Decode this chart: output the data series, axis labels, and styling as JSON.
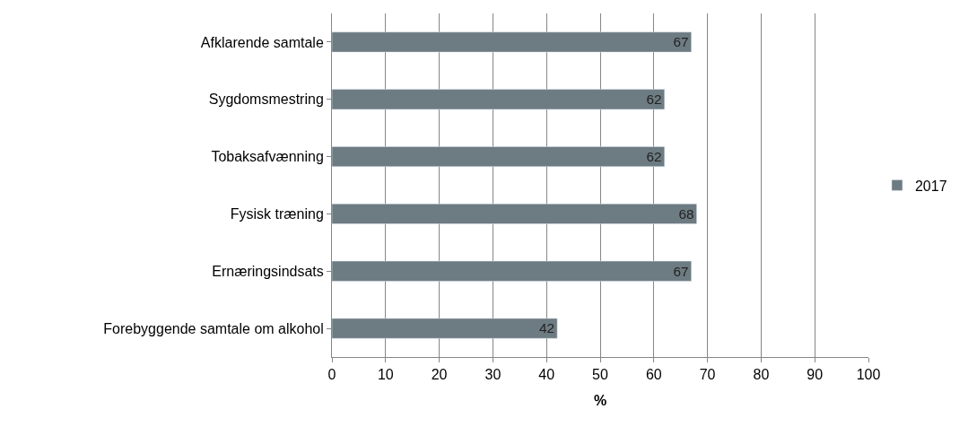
{
  "chart_data": {
    "type": "bar",
    "orientation": "horizontal",
    "categories": [
      "Afklarende samtale",
      "Sygdomsmestring",
      "Tobaksafvænning",
      "Fysisk træning",
      "Ernæringsindsats",
      "Forebyggende samtale om alkohol"
    ],
    "series": [
      {
        "name": "2017",
        "color": "#6d7b82",
        "values": [
          67,
          62,
          62,
          68,
          67,
          42
        ]
      }
    ],
    "xlabel": "%",
    "xlim": [
      0,
      100
    ],
    "xticks": [
      0,
      10,
      20,
      30,
      40,
      50,
      60,
      70,
      80,
      90,
      100
    ],
    "grid": "x",
    "legend": "right",
    "data_labels": true
  }
}
